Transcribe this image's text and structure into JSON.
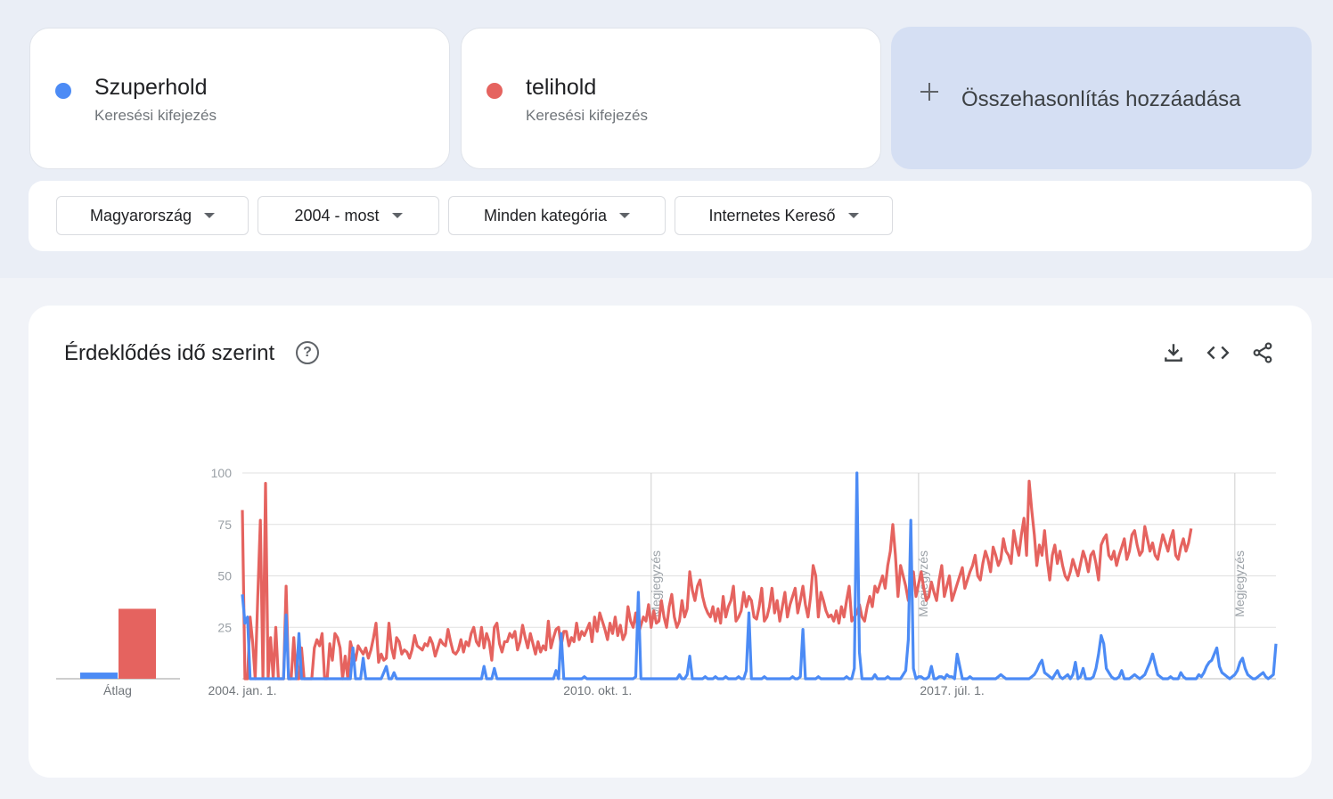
{
  "terms": [
    {
      "name": "Szuperhold",
      "type": "Keresési kifejezés",
      "color": "#4c8bf5"
    },
    {
      "name": "telihold",
      "type": "Keresési kifejezés",
      "color": "#e5635f"
    }
  ],
  "add_compare": {
    "label": "Összehasonlítás hozzáadása",
    "icon": "plus-icon"
  },
  "filters": [
    {
      "label": "Magyarország"
    },
    {
      "label": "2004 - most"
    },
    {
      "label": "Minden kategória"
    },
    {
      "label": "Internetes Kereső"
    }
  ],
  "chart_section": {
    "title": "Érdeklődés idő szerint",
    "help_icon": "help-icon",
    "tools": [
      "download-icon",
      "embed-code-icon",
      "share-icon"
    ]
  },
  "chart_data": {
    "type": "line",
    "average": {
      "label": "Átlag",
      "values": [
        3,
        34
      ]
    },
    "x_labels": [
      "2004. jan. 1.",
      "2010. okt. 1.",
      "2017. júl. 1."
    ],
    "y_ticks": [
      25,
      50,
      75,
      100
    ],
    "ylim": [
      0,
      100
    ],
    "annotations": [
      "Megjegyzés",
      "Megjegyzés",
      "Megjegyzés"
    ],
    "grid": true,
    "series": [
      {
        "name": "Szuperhold",
        "color": "#4c8bf5",
        "values": [
          41,
          27,
          30,
          0,
          0,
          0,
          0,
          0,
          0,
          0,
          0,
          0,
          0,
          0,
          0,
          0,
          0,
          31,
          0,
          0,
          0,
          0,
          22,
          0,
          0,
          0,
          0,
          0,
          0,
          0,
          0,
          0,
          0,
          0,
          0,
          0,
          0,
          0,
          0,
          0,
          0,
          0,
          0,
          15,
          0,
          0,
          0,
          10,
          0,
          0,
          0,
          0,
          0,
          0,
          0,
          3,
          6,
          0,
          0,
          3,
          0,
          0,
          0,
          0,
          0,
          0,
          0,
          0,
          0,
          0,
          0,
          0,
          0,
          0,
          0,
          0,
          0,
          0,
          0,
          0,
          0,
          0,
          0,
          0,
          0,
          0,
          0,
          0,
          0,
          0,
          0,
          0,
          0,
          0,
          6,
          0,
          0,
          0,
          5,
          0,
          0,
          0,
          0,
          0,
          0,
          0,
          0,
          0,
          0,
          0,
          0,
          0,
          0,
          0,
          0,
          0,
          0,
          0,
          0,
          0,
          0,
          0,
          4,
          0,
          22,
          0,
          0,
          0,
          0,
          0,
          0,
          0,
          0,
          1,
          0,
          0,
          0,
          0,
          0,
          0,
          0,
          0,
          0,
          0,
          0,
          0,
          0,
          0,
          0,
          0,
          0,
          0,
          0,
          1,
          42,
          0,
          0,
          0,
          0,
          0,
          0,
          0,
          0,
          0,
          0,
          0,
          0,
          0,
          0,
          0,
          2,
          0,
          0,
          2,
          11,
          0,
          0,
          0,
          0,
          0,
          1,
          0,
          0,
          0,
          1,
          0,
          0,
          0,
          1,
          0,
          0,
          0,
          0,
          1,
          0,
          0,
          4,
          32,
          0,
          0,
          0,
          0,
          0,
          1,
          0,
          0,
          0,
          0,
          0,
          0,
          0,
          0,
          0,
          0,
          1,
          0,
          0,
          1,
          24,
          0,
          0,
          0,
          0,
          0,
          1,
          0,
          0,
          0,
          0,
          0,
          0,
          0,
          0,
          0,
          0,
          1,
          0,
          0,
          5,
          100,
          13,
          0,
          0,
          0,
          0,
          0,
          2,
          0,
          0,
          0,
          0,
          1,
          0,
          0,
          0,
          0,
          0,
          2,
          4,
          19,
          77,
          5,
          0,
          1,
          1,
          0,
          0,
          1,
          6,
          0,
          0,
          1,
          1,
          0,
          2,
          1,
          1,
          0,
          12,
          6,
          0,
          0,
          0,
          1,
          0,
          0,
          0,
          0,
          0,
          0,
          0,
          0,
          0,
          0,
          1,
          2,
          1,
          0,
          0,
          0,
          0,
          0,
          0,
          0,
          0,
          0,
          0,
          1,
          2,
          4,
          7,
          9,
          3,
          2,
          1,
          0,
          2,
          4,
          1,
          0,
          1,
          2,
          0,
          2,
          8,
          0,
          1,
          5,
          0,
          0,
          0,
          1,
          5,
          12,
          21,
          17,
          5,
          3,
          1,
          0,
          0,
          1,
          4,
          0,
          0,
          0,
          1,
          2,
          1,
          0,
          1,
          2,
          5,
          8,
          12,
          7,
          2,
          1,
          0,
          0,
          0,
          1,
          0,
          0,
          0,
          3,
          1,
          0,
          0,
          0,
          0,
          0,
          2,
          1,
          3,
          6,
          8,
          9,
          12,
          15,
          6,
          3,
          2,
          1,
          0,
          1,
          2,
          4,
          8,
          10,
          5,
          2,
          1,
          0,
          0,
          1,
          2,
          3,
          1,
          0,
          1,
          2,
          17
        ]
      },
      {
        "name": "telihold",
        "color": "#e5635f",
        "values": [
          82,
          0,
          0,
          30,
          18,
          0,
          40,
          77,
          0,
          95,
          0,
          20,
          0,
          25,
          0,
          0,
          0,
          45,
          0,
          0,
          20,
          0,
          0,
          15,
          0,
          0,
          0,
          0,
          15,
          19,
          16,
          22,
          0,
          0,
          17,
          9,
          22,
          20,
          15,
          0,
          11,
          0,
          18,
          13,
          9,
          16,
          14,
          12,
          15,
          10,
          14,
          20,
          27,
          8,
          12,
          9,
          10,
          27,
          15,
          10,
          20,
          18,
          12,
          14,
          13,
          10,
          14,
          21,
          16,
          15,
          14,
          17,
          16,
          20,
          17,
          11,
          15,
          19,
          17,
          16,
          24,
          18,
          13,
          12,
          14,
          19,
          13,
          18,
          16,
          22,
          25,
          18,
          16,
          25,
          15,
          22,
          18,
          9,
          25,
          27,
          17,
          13,
          18,
          18,
          22,
          20,
          23,
          14,
          18,
          26,
          20,
          15,
          22,
          17,
          12,
          18,
          13,
          16,
          14,
          28,
          15,
          20,
          24,
          25,
          16,
          23,
          23,
          16,
          20,
          18,
          27,
          19,
          23,
          21,
          24,
          27,
          18,
          30,
          23,
          32,
          28,
          24,
          19,
          27,
          22,
          30,
          21,
          26,
          19,
          22,
          35,
          28,
          25,
          32,
          22,
          26,
          30,
          28,
          36,
          25,
          33,
          27,
          28,
          38,
          30,
          25,
          35,
          41,
          30,
          25,
          28,
          38,
          30,
          34,
          52,
          43,
          38,
          45,
          48,
          40,
          35,
          32,
          30,
          35,
          28,
          34,
          27,
          40,
          30,
          35,
          38,
          45,
          28,
          30,
          33,
          42,
          35,
          40,
          38,
          30,
          29,
          35,
          44,
          28,
          30,
          35,
          44,
          32,
          38,
          28,
          35,
          42,
          30,
          36,
          40,
          44,
          32,
          38,
          45,
          36,
          30,
          40,
          55,
          50,
          30,
          42,
          38,
          33,
          30,
          31,
          28,
          33,
          27,
          35,
          30,
          38,
          45,
          28,
          30,
          32,
          36,
          30,
          28,
          35,
          40,
          35,
          45,
          42,
          46,
          50,
          44,
          55,
          62,
          75,
          60,
          40,
          55,
          50,
          45,
          38,
          44,
          52,
          40,
          46,
          52,
          44,
          38,
          40,
          47,
          42,
          38,
          48,
          55,
          40,
          45,
          50,
          38,
          42,
          46,
          50,
          54,
          44,
          48,
          52,
          55,
          60,
          50,
          48,
          56,
          62,
          58,
          52,
          64,
          60,
          55,
          58,
          68,
          62,
          60,
          56,
          72,
          65,
          60,
          70,
          78,
          60,
          96,
          82,
          70,
          55,
          65,
          60,
          72,
          58,
          48,
          60,
          65,
          56,
          62,
          55,
          50,
          48,
          52,
          58,
          54,
          50,
          56,
          62,
          58,
          52,
          60,
          62,
          56,
          48,
          65,
          68,
          70,
          60,
          58,
          62,
          55,
          60,
          64,
          68,
          58,
          62,
          70,
          72,
          65,
          60,
          62,
          74,
          68,
          62,
          66,
          60,
          58,
          64,
          70,
          66,
          62,
          68,
          72,
          60,
          58,
          64,
          68,
          62,
          66,
          73
        ]
      }
    ]
  }
}
